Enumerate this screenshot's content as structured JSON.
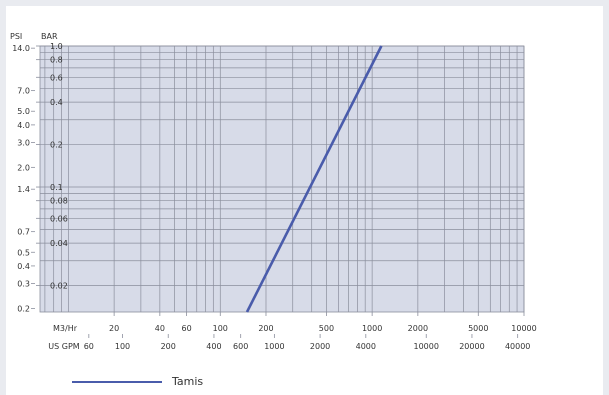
{
  "colors": {
    "plot_background": "#d7dbe8",
    "grid": "#8a8e9c",
    "series_line": "#4a5cab",
    "axis_text": "#333333"
  },
  "chart_data": {
    "type": "line",
    "title": "",
    "scale": "log-log",
    "grid": true,
    "legend_position": "bottom-left",
    "legend": [
      "Tamis"
    ],
    "y_axes": [
      {
        "unit": "PSI",
        "ticks": [
          {
            "label": "14.0",
            "value": 14.0
          },
          {
            "label": "7.0",
            "value": 7.0
          },
          {
            "label": "5.0",
            "value": 5.0
          },
          {
            "label": "4.0",
            "value": 4.0
          },
          {
            "label": "3.0",
            "value": 3.0
          },
          {
            "label": "2.0",
            "value": 2.0
          },
          {
            "label": "1.4",
            "value": 1.4
          },
          {
            "label": "0.7",
            "value": 0.7
          },
          {
            "label": "0.5",
            "value": 0.5
          },
          {
            "label": "0.4",
            "value": 0.4
          },
          {
            "label": "0.3",
            "value": 0.3
          },
          {
            "label": "0.2",
            "value": 0.2
          }
        ]
      },
      {
        "unit": "BAR",
        "range": [
          0.013,
          1.0
        ],
        "ticks": [
          {
            "label": "1.0",
            "value": 1.0
          },
          {
            "label": "0.8",
            "value": 0.8
          },
          {
            "label": "0.6",
            "value": 0.6
          },
          {
            "label": "0.4",
            "value": 0.4
          },
          {
            "label": "0.2",
            "value": 0.2
          },
          {
            "label": "0.1",
            "value": 0.1
          },
          {
            "label": "0.08",
            "value": 0.08
          },
          {
            "label": "0.06",
            "value": 0.06
          },
          {
            "label": "0.04",
            "value": 0.04
          },
          {
            "label": "0.02",
            "value": 0.02
          }
        ]
      }
    ],
    "x_axes": [
      {
        "unit": "M3/Hr",
        "range": [
          6.5,
          10000
        ],
        "ticks": [
          {
            "label": "20",
            "value": 20
          },
          {
            "label": "40",
            "value": 40
          },
          {
            "label": "60",
            "value": 60
          },
          {
            "label": "100",
            "value": 100
          },
          {
            "label": "200",
            "value": 200
          },
          {
            "label": "500",
            "value": 500
          },
          {
            "label": "1000",
            "value": 1000
          },
          {
            "label": "2000",
            "value": 2000
          },
          {
            "label": "5000",
            "value": 5000
          },
          {
            "label": "10000",
            "value": 10000
          }
        ]
      },
      {
        "unit": "US GPM",
        "ticks": [
          {
            "label": "60",
            "value": 60
          },
          {
            "label": "100",
            "value": 100
          },
          {
            "label": "200",
            "value": 200
          },
          {
            "label": "400",
            "value": 400
          },
          {
            "label": "600",
            "value": 600
          },
          {
            "label": "1000",
            "value": 1000
          },
          {
            "label": "2000",
            "value": 2000
          },
          {
            "label": "4000",
            "value": 4000
          },
          {
            "label": "10000",
            "value": 10000
          },
          {
            "label": "20000",
            "value": 20000
          },
          {
            "label": "40000",
            "value": 40000
          }
        ]
      }
    ],
    "series": [
      {
        "name": "Tamis",
        "x_unit": "M3/Hr",
        "y_unit": "BAR",
        "points": [
          [
            150,
            0.013
          ],
          [
            1150,
            1.0
          ]
        ]
      }
    ]
  }
}
